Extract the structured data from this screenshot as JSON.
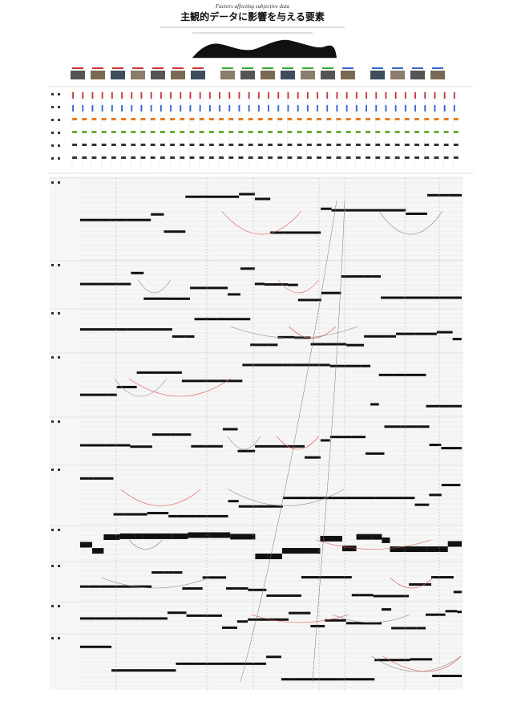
{
  "header": {
    "title_en": "Factors affecting subjective data",
    "title_ja": "主観的データに影響を与える要素"
  }
}
